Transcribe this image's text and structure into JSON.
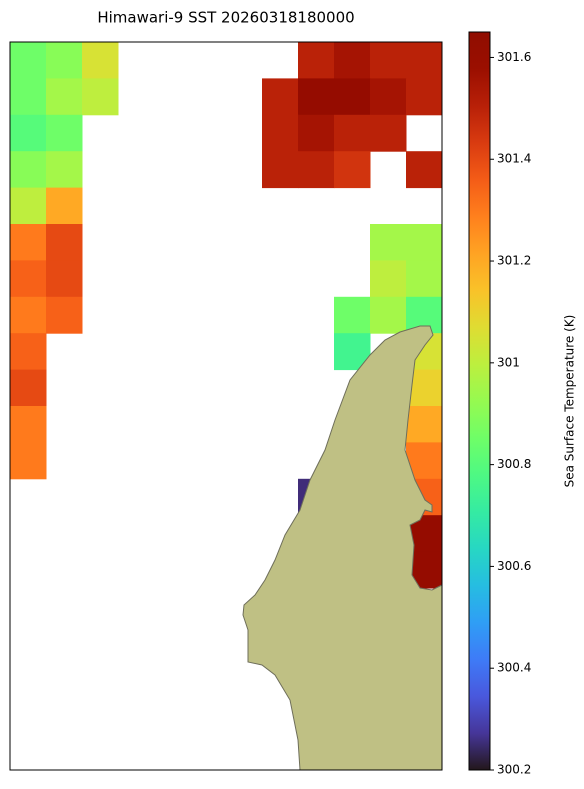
{
  "chart_data": {
    "type": "heatmap",
    "title": "Himawari-9 SST 20260318180000",
    "colorbar_label": "Sea Surface Temperature (K)",
    "colormap": "turbo",
    "clim": [
      300.2,
      301.65
    ],
    "cticks": [
      300.2,
      300.4,
      300.6,
      300.8,
      301.0,
      301.2,
      301.4,
      301.6
    ],
    "cells": [
      [
        300.85,
        300.9,
        301.05,
        null,
        null,
        null,
        null,
        null,
        301.5,
        301.55,
        301.5,
        301.5
      ],
      [
        300.85,
        300.95,
        301.0,
        null,
        null,
        null,
        null,
        301.5,
        301.6,
        301.6,
        301.55,
        301.5
      ],
      [
        300.8,
        300.85,
        null,
        null,
        null,
        null,
        null,
        301.5,
        301.55,
        301.5,
        301.5,
        null
      ],
      [
        300.9,
        300.95,
        null,
        null,
        null,
        null,
        null,
        301.5,
        301.5,
        301.45,
        null,
        301.5
      ],
      [
        301.0,
        301.2,
        null,
        null,
        null,
        null,
        null,
        null,
        null,
        null,
        null,
        null
      ],
      [
        301.3,
        301.4,
        null,
        null,
        null,
        null,
        null,
        null,
        null,
        null,
        300.95,
        300.95
      ],
      [
        301.35,
        301.4,
        null,
        null,
        null,
        null,
        null,
        null,
        null,
        null,
        301.0,
        300.95
      ],
      [
        301.3,
        301.35,
        null,
        null,
        null,
        null,
        null,
        null,
        null,
        300.85,
        300.95,
        300.8
      ],
      [
        301.35,
        null,
        null,
        null,
        null,
        null,
        null,
        null,
        null,
        300.75,
        null,
        301.05
      ],
      [
        301.4,
        null,
        null,
        null,
        null,
        null,
        null,
        null,
        null,
        null,
        null,
        301.1
      ],
      [
        301.3,
        null,
        null,
        null,
        null,
        null,
        null,
        null,
        null,
        null,
        null,
        301.2
      ],
      [
        301.3,
        null,
        null,
        null,
        null,
        null,
        null,
        null,
        null,
        null,
        null,
        301.3
      ],
      [
        null,
        null,
        null,
        null,
        null,
        null,
        null,
        null,
        300.25,
        null,
        null,
        301.35
      ],
      [
        null,
        null,
        null,
        null,
        null,
        null,
        null,
        null,
        null,
        null,
        null,
        301.6
      ],
      [
        null,
        null,
        null,
        null,
        null,
        null,
        null,
        null,
        null,
        null,
        null,
        301.6
      ],
      [
        null,
        null,
        null,
        null,
        null,
        null,
        null,
        null,
        null,
        null,
        null,
        null
      ],
      [
        null,
        null,
        null,
        null,
        null,
        null,
        null,
        null,
        null,
        null,
        null,
        null
      ],
      [
        null,
        null,
        null,
        null,
        null,
        null,
        null,
        null,
        null,
        null,
        null,
        null
      ],
      [
        null,
        null,
        null,
        null,
        null,
        null,
        null,
        null,
        null,
        null,
        null,
        null
      ],
      [
        null,
        null,
        null,
        null,
        null,
        null,
        null,
        null,
        null,
        null,
        null,
        null
      ]
    ]
  }
}
